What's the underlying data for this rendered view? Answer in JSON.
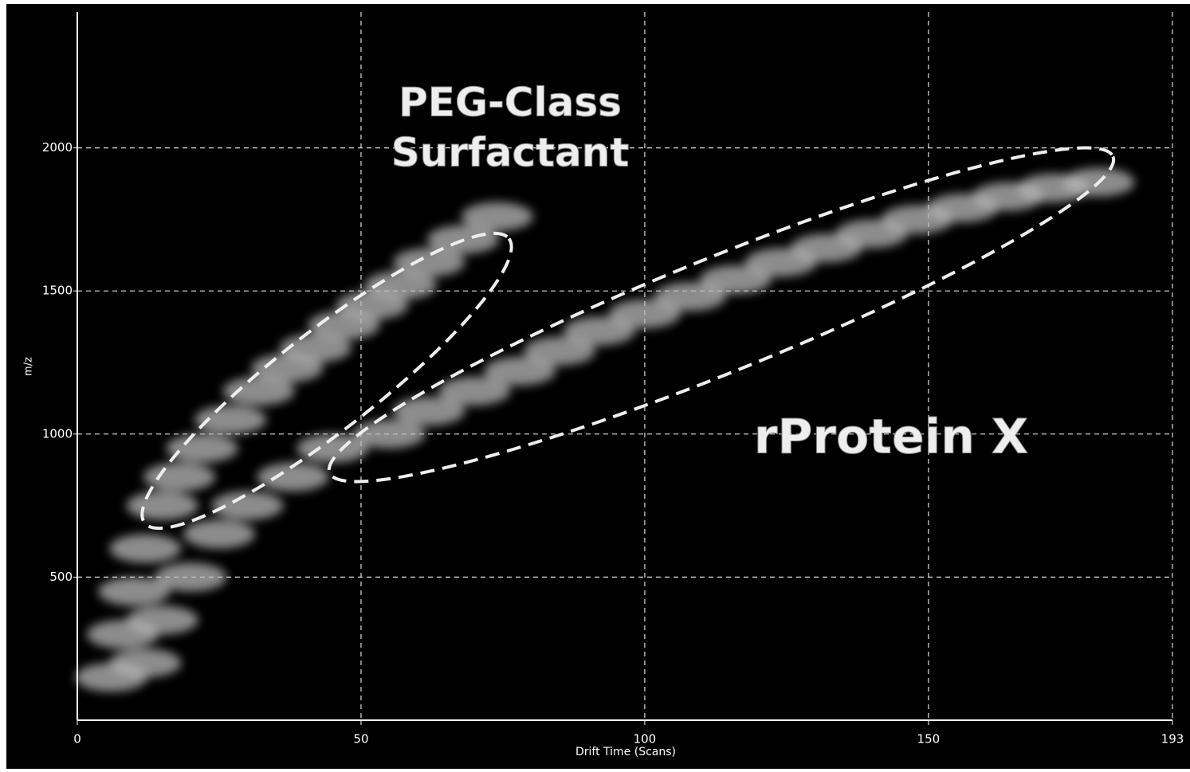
{
  "chart_data": {
    "type": "scatter",
    "x_label": "Drift Time (Scans)",
    "y_label": "m/z",
    "annotations": [
      "PEG-Class",
      "Surfactant",
      "rProtein X"
    ],
    "x": [
      6,
      8,
      10,
      12,
      15,
      18,
      22,
      27,
      32,
      37,
      42,
      47,
      52,
      57,
      62,
      68,
      74,
      12,
      15,
      20,
      25,
      30,
      38,
      45,
      55,
      62,
      70,
      78,
      85,
      92,
      100,
      108,
      116,
      124,
      132,
      140,
      148,
      156,
      164,
      172,
      180
    ],
    "values": [
      150,
      300,
      450,
      600,
      750,
      850,
      950,
      1050,
      1150,
      1230,
      1300,
      1380,
      1450,
      1520,
      1600,
      1680,
      1760,
      200,
      350,
      500,
      650,
      750,
      850,
      950,
      1000,
      1080,
      1150,
      1220,
      1290,
      1360,
      1420,
      1480,
      1540,
      1600,
      1650,
      1700,
      1750,
      1790,
      1830,
      1860,
      1880
    ],
    "color": "#bbbbbb",
    "xlim": [
      0,
      193
    ],
    "ylim": [
      0,
      2475
    ],
    "xticks": [
      0,
      50,
      100,
      150,
      193
    ],
    "yticks": [
      500,
      1000,
      1500,
      2000
    ],
    "grid": true
  }
}
